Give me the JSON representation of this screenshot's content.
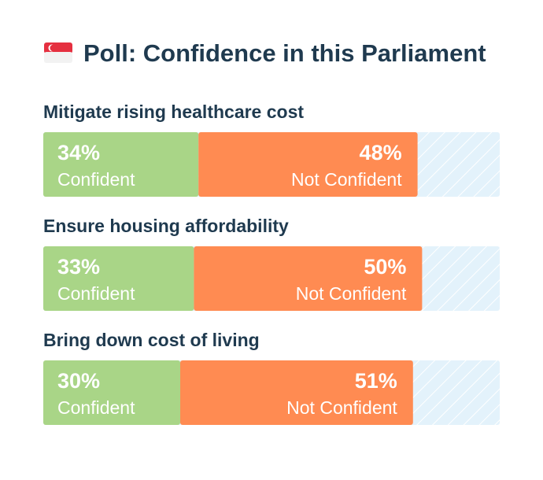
{
  "chart_data": {
    "type": "bar",
    "title": "Poll: Confidence in this Parliament",
    "categories": [
      "Mitigate rising healthcare cost",
      "Ensure housing affordability",
      "Bring down cost of living"
    ],
    "series": [
      {
        "name": "Confident",
        "color": "#a9d587",
        "values": [
          34,
          33,
          30
        ],
        "value_labels": [
          "34%",
          "33%",
          "30%"
        ]
      },
      {
        "name": "Not Confident",
        "color": "#ff8b52",
        "values": [
          48,
          50,
          51
        ],
        "value_labels": [
          "48%",
          "50%",
          "51%"
        ]
      }
    ],
    "xlim": [
      0,
      100
    ],
    "stacked": true,
    "orientation": "horizontal"
  }
}
